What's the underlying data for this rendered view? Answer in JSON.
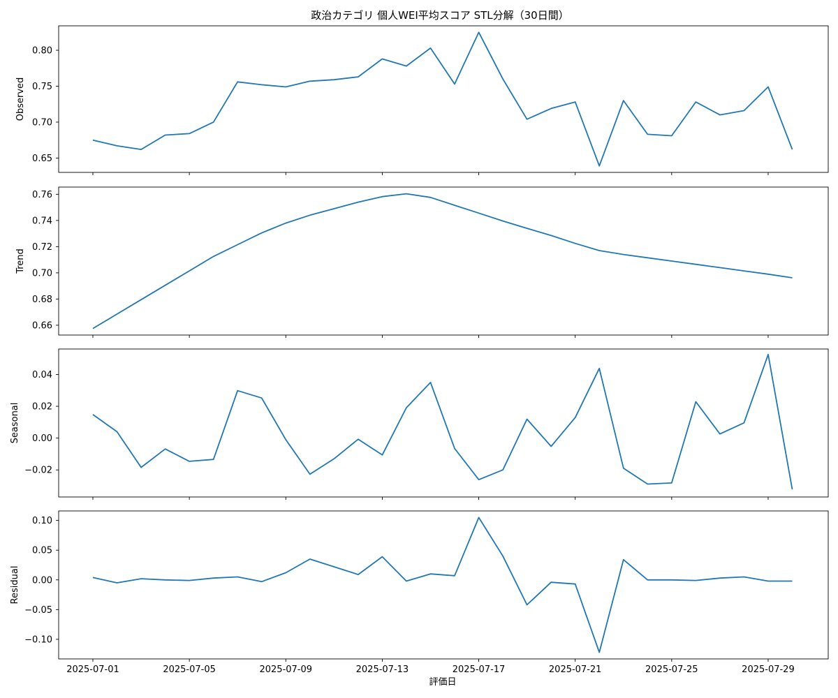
{
  "chart_data": {
    "type": "line",
    "title": "政治カテゴリ 個人WEI平均スコア STL分解（30日間）",
    "xlabel": "評価日",
    "color": "#1f77b4",
    "x": [
      "2025-07-01",
      "2025-07-02",
      "2025-07-03",
      "2025-07-04",
      "2025-07-05",
      "2025-07-06",
      "2025-07-07",
      "2025-07-08",
      "2025-07-09",
      "2025-07-10",
      "2025-07-11",
      "2025-07-12",
      "2025-07-13",
      "2025-07-14",
      "2025-07-15",
      "2025-07-16",
      "2025-07-17",
      "2025-07-18",
      "2025-07-19",
      "2025-07-20",
      "2025-07-21",
      "2025-07-22",
      "2025-07-23",
      "2025-07-24",
      "2025-07-25",
      "2025-07-26",
      "2025-07-27",
      "2025-07-28",
      "2025-07-29",
      "2025-07-30"
    ],
    "x_ticks": [
      "2025-07-01",
      "2025-07-05",
      "2025-07-09",
      "2025-07-13",
      "2025-07-17",
      "2025-07-21",
      "2025-07-25",
      "2025-07-29"
    ],
    "panels": [
      {
        "ylabel": "Observed",
        "ylim": [
          0.63,
          0.834
        ],
        "yticks": [
          "0.65",
          "0.70",
          "0.75",
          "0.80"
        ],
        "values": [
          0.675,
          0.667,
          0.662,
          0.682,
          0.684,
          0.7,
          0.756,
          0.752,
          0.749,
          0.757,
          0.759,
          0.763,
          0.788,
          0.778,
          0.803,
          0.753,
          0.825,
          0.76,
          0.704,
          0.719,
          0.728,
          0.639,
          0.73,
          0.683,
          0.681,
          0.728,
          0.71,
          0.716,
          0.749,
          0.662
        ]
      },
      {
        "ylabel": "Trend",
        "ylim": [
          0.6525,
          0.7655
        ],
        "yticks": [
          "0.66",
          "0.68",
          "0.70",
          "0.72",
          "0.74",
          "0.76"
        ],
        "values": [
          0.6575,
          0.6685,
          0.6795,
          0.6905,
          0.7015,
          0.7125,
          0.7215,
          0.7305,
          0.738,
          0.744,
          0.749,
          0.754,
          0.7582,
          0.7604,
          0.7576,
          0.7516,
          0.7456,
          0.7396,
          0.734,
          0.7285,
          0.7225,
          0.717,
          0.714,
          0.7115,
          0.709,
          0.7065,
          0.704,
          0.7015,
          0.699,
          0.6962
        ]
      },
      {
        "ylabel": "Seasonal",
        "ylim": [
          -0.037,
          0.056
        ],
        "yticks": [
          "−0.02",
          "0.00",
          "0.02",
          "0.04"
        ],
        "values": [
          0.0148,
          0.004,
          -0.0184,
          -0.0068,
          -0.0146,
          -0.0134,
          0.0298,
          0.0252,
          -0.001,
          -0.0227,
          -0.013,
          -0.0007,
          -0.0106,
          0.0191,
          0.035,
          -0.0065,
          -0.0261,
          -0.02,
          0.0119,
          -0.0052,
          0.0129,
          0.0438,
          -0.0189,
          -0.0289,
          -0.0282,
          0.0229,
          0.0026,
          0.0096,
          0.0526,
          -0.0322
        ]
      },
      {
        "ylabel": "Residual",
        "ylim": [
          -0.133,
          0.116
        ],
        "yticks": [
          "−0.10",
          "−0.05",
          "0.00",
          "0.05",
          "0.10"
        ],
        "values": [
          0.004,
          -0.005,
          0.002,
          0.0,
          -0.001,
          0.003,
          0.005,
          -0.003,
          0.012,
          0.035,
          0.022,
          0.009,
          0.039,
          -0.002,
          0.01,
          0.007,
          0.105,
          0.04,
          -0.042,
          -0.004,
          -0.007,
          -0.122,
          0.034,
          0.0,
          0.0,
          -0.001,
          0.003,
          0.005,
          -0.002,
          -0.002
        ]
      }
    ]
  }
}
